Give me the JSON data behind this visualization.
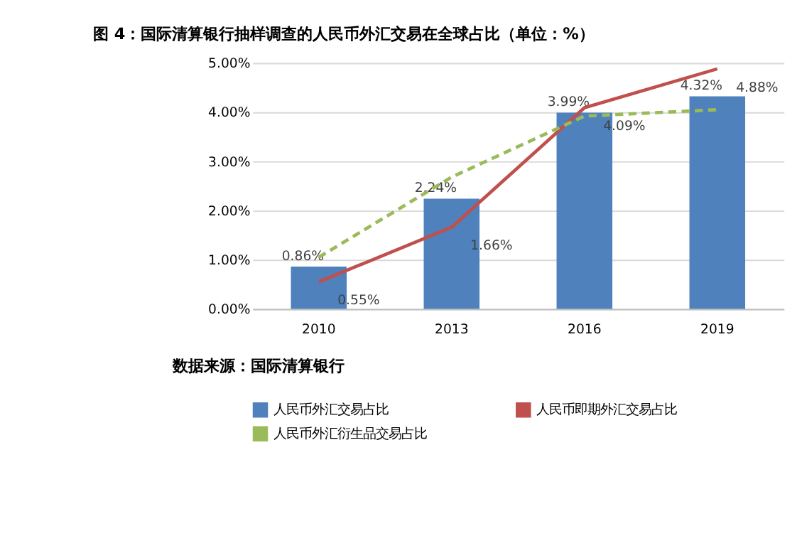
{
  "chart_data": {
    "type": "bar",
    "title": "图 4：国际清算银行抽样调查的人民币外汇交易在全球占比（单位：%）",
    "categories": [
      "2010",
      "2013",
      "2016",
      "2019"
    ],
    "series": [
      {
        "name": "人民币外汇交易占比",
        "color": "#4f81bd",
        "values": [
          0.86,
          2.24,
          3.99,
          4.32
        ],
        "value_labels": [
          "0.86%",
          "2.24%",
          "3.99%",
          "4.32%"
        ]
      },
      {
        "name": "人民币即期外汇交易占比",
        "type": "line",
        "color": "#c0504d",
        "values": [
          0.55,
          1.66,
          4.09,
          4.88
        ],
        "value_labels": [
          "0.55%",
          "1.66%",
          "4.09%",
          "4.88%"
        ]
      },
      {
        "name": "人民币外汇衍生品交易占比",
        "type": "line",
        "line_style": "dashed",
        "color": "#9bbb59",
        "values": [
          1.05,
          2.68,
          3.92,
          4.05
        ]
      }
    ],
    "ylim": [
      0,
      5
    ],
    "yticks": [
      {
        "value": 0,
        "label": "0.00%"
      },
      {
        "value": 1,
        "label": "1.00%"
      },
      {
        "value": 2,
        "label": "2.00%"
      },
      {
        "value": 3,
        "label": "3.00%"
      },
      {
        "value": 4,
        "label": "4.00%"
      },
      {
        "value": 5,
        "label": "5.00%"
      }
    ],
    "grid": "y",
    "legend": "bottom",
    "marker": "none",
    "annotations": [
      "数据来源：国际清算银行"
    ]
  }
}
